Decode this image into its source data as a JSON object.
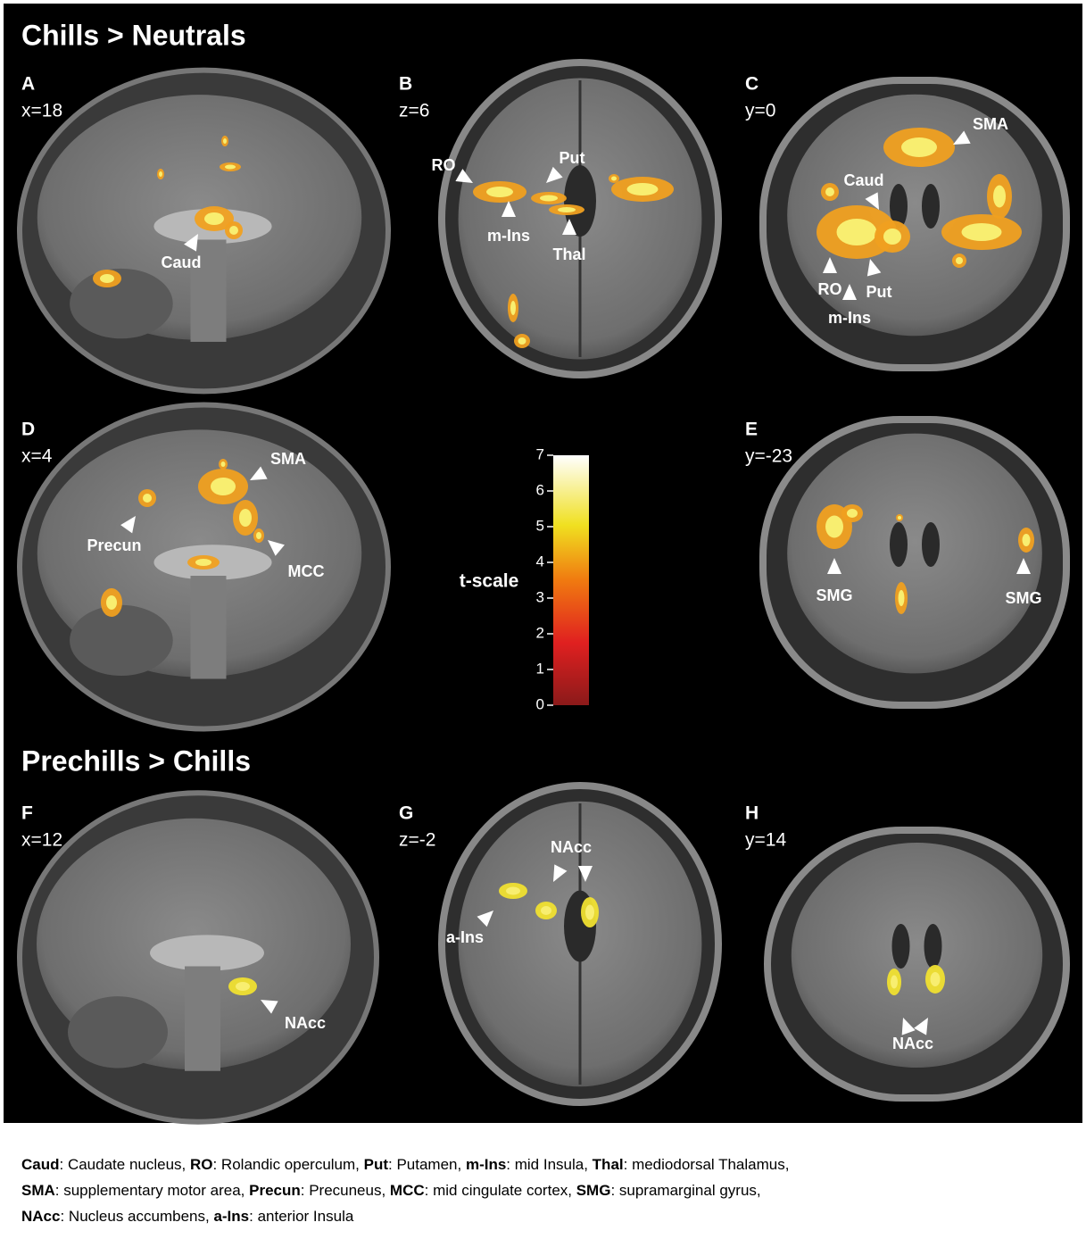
{
  "sections": [
    {
      "title": "Chills > Neutrals",
      "panels": [
        {
          "letter": "A",
          "coord": "x=18",
          "labels": [
            "Caud"
          ]
        },
        {
          "letter": "B",
          "coord": "z=6",
          "labels": [
            "RO",
            "Put",
            "m-Ins",
            "Thal"
          ]
        },
        {
          "letter": "C",
          "coord": "y=0",
          "labels": [
            "SMA",
            "Caud",
            "RO",
            "Put",
            "m-Ins"
          ]
        },
        {
          "letter": "D",
          "coord": "x=4",
          "labels": [
            "SMA",
            "Precun",
            "MCC"
          ]
        },
        {
          "letter": "E",
          "coord": "y=-23",
          "labels": [
            "SMG",
            "SMG"
          ]
        }
      ]
    },
    {
      "title": "Prechills > Chills",
      "panels": [
        {
          "letter": "F",
          "coord": "x=12",
          "labels": [
            "NAcc"
          ]
        },
        {
          "letter": "G",
          "coord": "z=-2",
          "labels": [
            "NAcc",
            "a-Ins"
          ]
        },
        {
          "letter": "H",
          "coord": "y=14",
          "labels": [
            "NAcc"
          ]
        }
      ]
    }
  ],
  "colorbar": {
    "label": "t-scale",
    "lim": [
      0,
      7
    ],
    "ticks": [
      0,
      1,
      2,
      3,
      4,
      5,
      6,
      7
    ]
  },
  "legend": {
    "lines": [
      [
        {
          "abbr": "Caud",
          "text": ": Caudate nucleus, "
        },
        {
          "abbr": "RO",
          "text": ": Rolandic operculum, "
        },
        {
          "abbr": "Put",
          "text": ": Putamen, "
        },
        {
          "abbr": "m-Ins",
          "text": ": mid Insula, "
        },
        {
          "abbr": "Thal",
          "text": ": mediodorsal Thalamus,"
        }
      ],
      [
        {
          "abbr": "SMA",
          "text": ": supplementary motor area, "
        },
        {
          "abbr": "Precun",
          "text": ": Precuneus, "
        },
        {
          "abbr": "MCC",
          "text": ": mid cingulate cortex, "
        },
        {
          "abbr": "SMG",
          "text": ": supramarginal gyrus,"
        }
      ],
      [
        {
          "abbr": "NAcc",
          "text": ": Nucleus accumbens, "
        },
        {
          "abbr": "a-Ins",
          "text": ": anterior Insula"
        }
      ]
    ]
  }
}
